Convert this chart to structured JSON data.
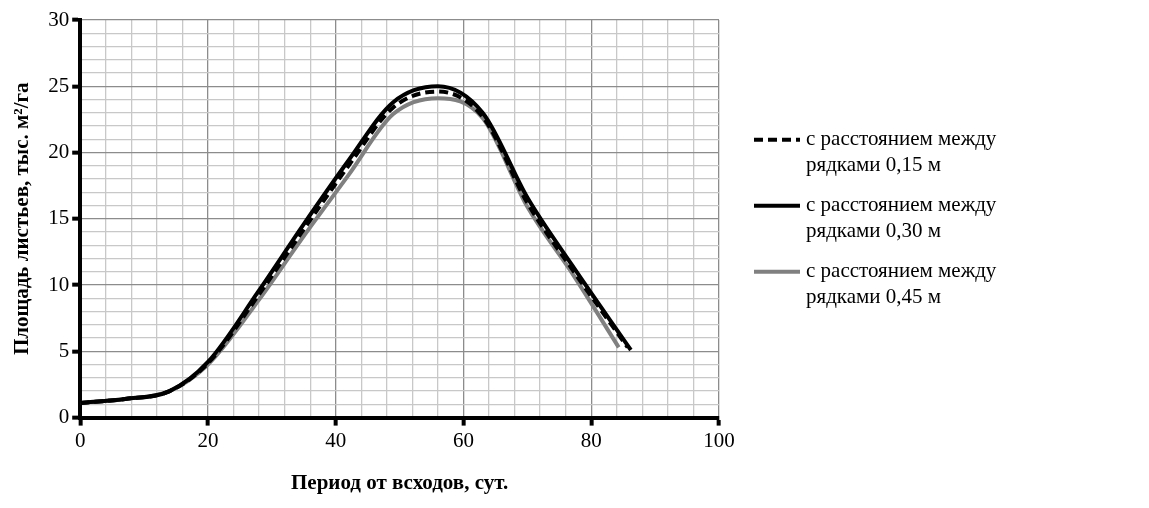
{
  "chart_data": {
    "type": "line",
    "xlabel": "Период от всходов, сут.",
    "ylabel": "Площадь листьев, тыс. м²/га",
    "xlim": [
      0,
      100
    ],
    "ylim": [
      0,
      30
    ],
    "xticks": [
      0,
      {
        "value": 4,
        "label": null
      },
      {
        "value": 8,
        "label": null
      },
      {
        "value": 12,
        "label": null
      },
      {
        "value": 16,
        "label": null
      },
      20,
      {
        "value": 24,
        "label": null
      },
      {
        "value": 28,
        "label": null
      },
      {
        "value": 32,
        "label": null
      },
      {
        "value": 36,
        "label": null
      },
      40,
      {
        "value": 44,
        "label": null
      },
      {
        "value": 48,
        "label": null
      },
      {
        "value": 52,
        "label": null
      },
      {
        "value": 56,
        "label": null
      },
      60,
      {
        "value": 64,
        "label": null
      },
      {
        "value": 68,
        "label": null
      },
      {
        "value": 72,
        "label": null
      },
      {
        "value": 76,
        "label": null
      },
      80,
      {
        "value": 84,
        "label": null
      },
      {
        "value": 88,
        "label": null
      },
      {
        "value": 92,
        "label": null
      },
      {
        "value": 96,
        "label": null
      },
      100
    ],
    "yticks": [
      0,
      {
        "value": 1,
        "label": null
      },
      {
        "value": 2,
        "label": null
      },
      {
        "value": 3,
        "label": null
      },
      {
        "value": 4,
        "label": null
      },
      5,
      {
        "value": 6,
        "label": null
      },
      {
        "value": 7,
        "label": null
      },
      {
        "value": 8,
        "label": null
      },
      {
        "value": 9,
        "label": null
      },
      10,
      {
        "value": 11,
        "label": null
      },
      {
        "value": 12,
        "label": null
      },
      {
        "value": 13,
        "label": null
      },
      {
        "value": 14,
        "label": null
      },
      15,
      {
        "value": 16,
        "label": null
      },
      {
        "value": 17,
        "label": null
      },
      {
        "value": 18,
        "label": null
      },
      {
        "value": 19,
        "label": null
      },
      20,
      {
        "value": 21,
        "label": null
      },
      {
        "value": 22,
        "label": null
      },
      {
        "value": 23,
        "label": null
      },
      {
        "value": 24,
        "label": null
      },
      25,
      {
        "value": 26,
        "label": null
      },
      {
        "value": 27,
        "label": null
      },
      {
        "value": 28,
        "label": null
      },
      {
        "value": 29,
        "label": null
      },
      30
    ],
    "grid": true,
    "legend": "right",
    "marker": "none",
    "series": [
      {
        "name": "с расстоянием между рядками 0,15 м",
        "color": "#000000",
        "line_style": "dashed",
        "x": [
          0,
          7,
          14,
          20,
          28,
          35,
          42,
          49,
          56,
          63,
          70,
          77,
          85.7
        ],
        "values": [
          1.1,
          1.4,
          2.0,
          4.1,
          9.3,
          14.2,
          19.0,
          23.4,
          24.6,
          22.7,
          16.2,
          11.2,
          5.3
        ]
      },
      {
        "name": "с расстоянием между рядками 0,30 м",
        "color": "#000000",
        "line_style": "solid",
        "x": [
          0,
          7,
          14,
          20,
          28,
          35,
          42,
          49,
          56,
          63,
          70,
          77,
          86.2
        ],
        "values": [
          1.1,
          1.4,
          2.0,
          4.2,
          9.6,
          14.6,
          19.4,
          23.8,
          25.0,
          23.0,
          16.6,
          11.5,
          5.1
        ]
      },
      {
        "name": "с расстоянием между рядками 0,45 м",
        "color": "#808080",
        "line_style": "solid",
        "x": [
          0,
          7,
          14,
          20,
          28,
          35,
          42,
          49,
          56,
          63,
          70,
          77,
          84.3
        ],
        "values": [
          1.1,
          1.4,
          2.0,
          4.0,
          8.9,
          13.7,
          18.3,
          22.9,
          24.1,
          22.6,
          15.9,
          10.9,
          5.3
        ]
      }
    ]
  }
}
